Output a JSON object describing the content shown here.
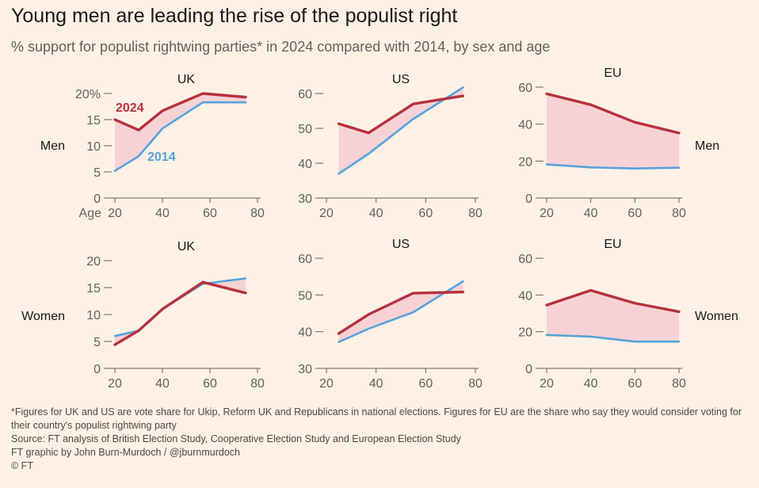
{
  "header": {
    "title": "Young men are leading the rise of the populist right",
    "subtitle": "% support for populist rightwing parties* in 2024 compared with 2014, by sex and age"
  },
  "rows": {
    "men": "Men",
    "women": "Women"
  },
  "footer": {
    "note": "*Figures for UK and US are vote share for Ukip, Reform UK and Republicans in national elections. Figures for EU are the share who say they would consider voting for their country's populist rightwing party",
    "source": "Source: FT analysis of British Election Study, Cooperative Election Study and European Election Study",
    "credit": "FT graphic by John Burn-Murdoch / @jburnmurdoch",
    "copyright": "© FT"
  },
  "colors": {
    "series_2024": "#b5323f",
    "series_2014": "#55a2db",
    "gap_fill": "#f7d2d4",
    "axis": "#66605c"
  },
  "chart_data": [
    {
      "type": "line",
      "id": "uk-men",
      "title": "UK",
      "row": "men",
      "xlabel_prefix": "Age",
      "ylim": [
        0,
        20
      ],
      "yticks": [
        0,
        5,
        10,
        15,
        20
      ],
      "ytick_suffix_top": "%",
      "xlim": [
        20,
        80
      ],
      "xticks": [
        20,
        40,
        60,
        80
      ],
      "series_labels": [
        "2024",
        "2014"
      ],
      "series": [
        {
          "name": "2024",
          "x": [
            20,
            30,
            40,
            57,
            75
          ],
          "values": [
            15,
            13,
            16.7,
            20,
            19.3
          ]
        },
        {
          "name": "2014",
          "x": [
            20,
            30,
            40,
            57,
            75
          ],
          "values": [
            5.2,
            8,
            13.3,
            18.3,
            18.3
          ]
        }
      ]
    },
    {
      "type": "line",
      "id": "us-men",
      "title": "US",
      "row": "men",
      "ylim": [
        30,
        60
      ],
      "yticks": [
        30,
        40,
        50,
        60
      ],
      "xlim": [
        20,
        80
      ],
      "xticks": [
        20,
        40,
        60,
        80
      ],
      "series": [
        {
          "name": "2024",
          "x": [
            25,
            37,
            55,
            75
          ],
          "values": [
            51.3,
            48.7,
            57,
            59.3
          ]
        },
        {
          "name": "2014",
          "x": [
            25,
            37,
            55,
            75
          ],
          "values": [
            37,
            42.7,
            52.7,
            61.7
          ]
        }
      ]
    },
    {
      "type": "line",
      "id": "eu-men",
      "title": "EU",
      "row": "men",
      "ylim": [
        0,
        60
      ],
      "yticks": [
        0,
        20,
        40,
        60
      ],
      "xlim": [
        20,
        80
      ],
      "xticks": [
        20,
        40,
        60,
        80
      ],
      "series": [
        {
          "name": "2024",
          "x": [
            20,
            40,
            60,
            80
          ],
          "values": [
            56.4,
            50.5,
            41,
            35.2
          ]
        },
        {
          "name": "2014",
          "x": [
            20,
            40,
            60,
            80
          ],
          "values": [
            18.2,
            16.6,
            16,
            16.4
          ]
        }
      ]
    },
    {
      "type": "line",
      "id": "uk-women",
      "title": "UK",
      "row": "women",
      "ylim": [
        0,
        20
      ],
      "yticks": [
        0,
        5,
        10,
        15,
        20
      ],
      "xlim": [
        20,
        80
      ],
      "xticks": [
        20,
        40,
        60,
        80
      ],
      "series": [
        {
          "name": "2024",
          "x": [
            20,
            30,
            40,
            57,
            75
          ],
          "values": [
            4.4,
            7,
            11,
            16,
            14
          ]
        },
        {
          "name": "2014",
          "x": [
            20,
            30,
            40,
            57,
            75
          ],
          "values": [
            6,
            7,
            11,
            15.7,
            16.7
          ]
        }
      ]
    },
    {
      "type": "line",
      "id": "us-women",
      "title": "US",
      "row": "women",
      "ylim": [
        30,
        60
      ],
      "yticks": [
        30,
        40,
        50,
        60
      ],
      "xlim": [
        20,
        80
      ],
      "xticks": [
        20,
        40,
        60,
        80
      ],
      "series": [
        {
          "name": "2024",
          "x": [
            25,
            37,
            55,
            75
          ],
          "values": [
            39.5,
            44.7,
            50.5,
            50.8
          ]
        },
        {
          "name": "2014",
          "x": [
            25,
            37,
            55,
            75
          ],
          "values": [
            37.2,
            40.8,
            45.3,
            53.7
          ]
        }
      ]
    },
    {
      "type": "line",
      "id": "eu-women",
      "title": "EU",
      "row": "women",
      "ylim": [
        0,
        60
      ],
      "yticks": [
        0,
        20,
        40,
        60
      ],
      "xlim": [
        20,
        80
      ],
      "xticks": [
        20,
        40,
        60,
        80
      ],
      "series": [
        {
          "name": "2024",
          "x": [
            20,
            40,
            60,
            80
          ],
          "values": [
            34.5,
            42.5,
            35.5,
            30.9
          ]
        },
        {
          "name": "2014",
          "x": [
            20,
            40,
            60,
            80
          ],
          "values": [
            18.2,
            17.3,
            14.6,
            14.6
          ]
        }
      ]
    }
  ]
}
